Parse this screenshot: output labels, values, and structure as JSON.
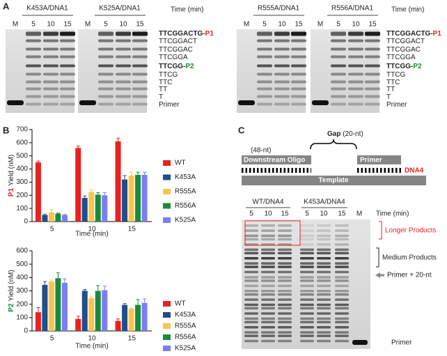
{
  "panel_a": {
    "label": "A",
    "gels": [
      {
        "title": "K453A/DNA1",
        "lanes": [
          "M",
          "5",
          "10",
          "15"
        ]
      },
      {
        "title": "K525A/DNA1",
        "lanes": [
          "M",
          "5",
          "10",
          "15"
        ]
      },
      {
        "title": "R555A/DNA1",
        "lanes": [
          "M",
          "5",
          "10",
          "15"
        ]
      },
      {
        "title": "R556A/DNA1",
        "lanes": [
          "M",
          "5",
          "10",
          "15"
        ]
      }
    ],
    "time_labels": [
      "Time (min)",
      "Time (min)"
    ],
    "ladders": [
      [
        {
          "seq": "TTCGGACTG-",
          "product": "P1"
        },
        {
          "seq": "TTCGGACT"
        },
        {
          "seq": "TTCGGAC"
        },
        {
          "seq": "TTCGGA"
        },
        {
          "seq": "TTCGG-",
          "product": "P2"
        },
        {
          "seq": "TTCG"
        },
        {
          "seq": "TTC"
        },
        {
          "seq": "TT"
        },
        {
          "seq": "T"
        },
        {
          "seq": "Primer"
        }
      ],
      [
        {
          "seq": "TTCGGACTG-",
          "product": "P1"
        },
        {
          "seq": "TTCGGACT"
        },
        {
          "seq": "TTCGGAC"
        },
        {
          "seq": "TTCGGA"
        },
        {
          "seq": "TTCGG-",
          "product": "P2"
        },
        {
          "seq": "TTCG"
        },
        {
          "seq": "TTC"
        },
        {
          "seq": "TT"
        },
        {
          "seq": "T"
        },
        {
          "seq": "Primer"
        }
      ]
    ]
  },
  "panel_b": {
    "label": "B"
  },
  "chart_data": [
    {
      "type": "bar",
      "ylabel_product": "P1",
      "ylabel_color": "#e8221f",
      "ylabel": "Yield (nM)",
      "xlabel": "Time (min)",
      "categories": [
        "5",
        "10",
        "15"
      ],
      "ylim": [
        0,
        700
      ],
      "yticks": [
        0,
        100,
        200,
        300,
        400,
        500,
        600,
        700
      ],
      "series": [
        {
          "name": "WT",
          "color": "#e8221f",
          "values": [
            450,
            560,
            610
          ],
          "errors": [
            10,
            15,
            25
          ]
        },
        {
          "name": "K453A",
          "color": "#1f4e8c",
          "values": [
            50,
            180,
            320
          ],
          "errors": [
            5,
            15,
            30
          ]
        },
        {
          "name": "R555A",
          "color": "#f9c44a",
          "values": [
            70,
            225,
            350
          ],
          "errors": [
            20,
            15,
            25
          ]
        },
        {
          "name": "R556A",
          "color": "#1a8a3c",
          "values": [
            60,
            205,
            355
          ],
          "errors": [
            5,
            15,
            20
          ]
        },
        {
          "name": "K525A",
          "color": "#7b7ef0",
          "values": [
            50,
            200,
            355
          ],
          "errors": [
            5,
            20,
            20
          ]
        }
      ]
    },
    {
      "type": "bar",
      "ylabel_product": "P2",
      "ylabel_color": "#1a8a3c",
      "ylabel": "Yield (nM)",
      "xlabel": "Time (min)",
      "categories": [
        "5",
        "10",
        "15"
      ],
      "ylim": [
        0,
        600
      ],
      "yticks": [
        0,
        100,
        200,
        300,
        400,
        500,
        600
      ],
      "series": [
        {
          "name": "WT",
          "color": "#e8221f",
          "values": [
            140,
            90,
            75
          ],
          "errors": [
            35,
            20,
            15
          ]
        },
        {
          "name": "K453A",
          "color": "#1f4e8c",
          "values": [
            345,
            300,
            195
          ],
          "errors": [
            25,
            10,
            10
          ]
        },
        {
          "name": "R555A",
          "color": "#f9c44a",
          "values": [
            370,
            245,
            165
          ],
          "errors": [
            10,
            10,
            5
          ]
        },
        {
          "name": "R556A",
          "color": "#1a8a3c",
          "values": [
            395,
            300,
            195
          ],
          "errors": [
            40,
            40,
            40
          ]
        },
        {
          "name": "K525A",
          "color": "#7b7ef0",
          "values": [
            360,
            305,
            210
          ],
          "errors": [
            30,
            30,
            30
          ]
        }
      ]
    }
  ],
  "panel_c": {
    "label": "C",
    "gap": "Gap",
    "gap_size": "(20-nt)",
    "oligo_size": "(48-nt)",
    "downstream": "Downstream Oligo",
    "primer": "Primer",
    "substrate": "DNA4",
    "template": "Template",
    "gels": [
      {
        "title": "WT/DNA4",
        "lanes": [
          "5",
          "10",
          "15"
        ]
      },
      {
        "title": "K453A/DNA4",
        "lanes": [
          "5",
          "10",
          "15"
        ]
      }
    ],
    "marker": "M",
    "time_label": "Time (min)",
    "longer": "Longer Products",
    "medium": "Medium Products",
    "primer20": "Primer + 20-nt",
    "primer_band": "Primer"
  }
}
